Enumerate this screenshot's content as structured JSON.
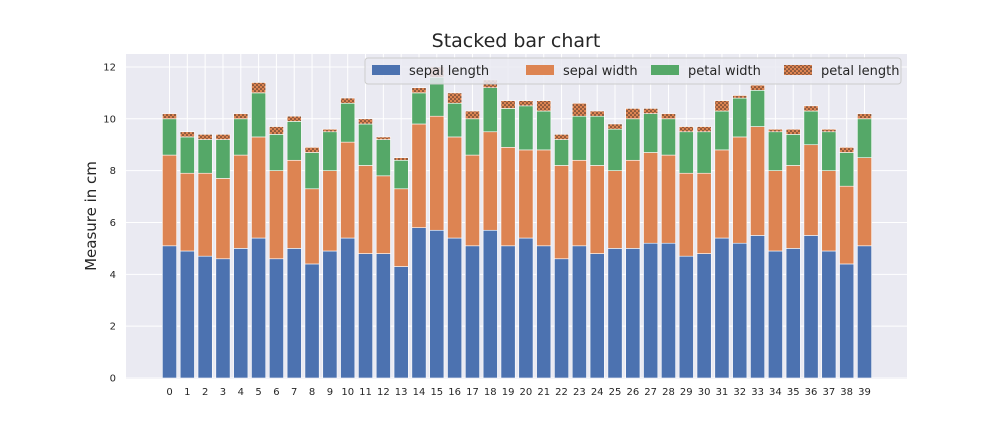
{
  "chart_data": {
    "type": "bar",
    "stacked": true,
    "title": "Stacked bar chart",
    "xlabel": "",
    "ylabel": "Measure in cm",
    "ylim": [
      0,
      12.5
    ],
    "yticks": [
      0,
      2,
      4,
      6,
      8,
      10,
      12
    ],
    "grid": true,
    "legend_position": "top-right",
    "categories": [
      "0",
      "1",
      "2",
      "3",
      "4",
      "5",
      "6",
      "7",
      "8",
      "9",
      "10",
      "11",
      "12",
      "13",
      "14",
      "15",
      "16",
      "17",
      "18",
      "19",
      "20",
      "21",
      "22",
      "23",
      "24",
      "25",
      "26",
      "27",
      "28",
      "29",
      "30",
      "31",
      "32",
      "33",
      "34",
      "35",
      "36",
      "37",
      "38",
      "39"
    ],
    "series": [
      {
        "name": "sepal length",
        "color": "#4c72b0",
        "values": [
          5.1,
          4.9,
          4.7,
          4.6,
          5.0,
          5.4,
          4.6,
          5.0,
          4.4,
          4.9,
          5.4,
          4.8,
          4.8,
          4.3,
          5.8,
          5.7,
          5.4,
          5.1,
          5.7,
          5.1,
          5.4,
          5.1,
          4.6,
          5.1,
          4.8,
          5.0,
          5.0,
          5.2,
          5.2,
          4.7,
          4.8,
          5.4,
          5.2,
          5.5,
          4.9,
          5.0,
          5.5,
          4.9,
          4.4,
          5.1
        ]
      },
      {
        "name": "sepal width",
        "color": "#dd8452",
        "values": [
          3.5,
          3.0,
          3.2,
          3.1,
          3.6,
          3.9,
          3.4,
          3.4,
          2.9,
          3.1,
          3.7,
          3.4,
          3.0,
          3.0,
          4.0,
          4.4,
          3.9,
          3.5,
          3.8,
          3.8,
          3.4,
          3.7,
          3.6,
          3.3,
          3.4,
          3.0,
          3.4,
          3.5,
          3.4,
          3.2,
          3.1,
          3.4,
          4.1,
          4.2,
          3.1,
          3.2,
          3.5,
          3.1,
          3.0,
          3.4
        ]
      },
      {
        "name": "petal width",
        "color": "#55a868",
        "values": [
          1.4,
          1.4,
          1.3,
          1.5,
          1.4,
          1.7,
          1.4,
          1.5,
          1.4,
          1.5,
          1.5,
          1.6,
          1.4,
          1.1,
          1.2,
          1.5,
          1.3,
          1.4,
          1.7,
          1.5,
          1.7,
          1.5,
          1.0,
          1.7,
          1.9,
          1.6,
          1.6,
          1.5,
          1.4,
          1.6,
          1.6,
          1.5,
          1.5,
          1.4,
          1.5,
          1.2,
          1.3,
          1.5,
          1.3,
          1.5
        ]
      },
      {
        "name": "petal length",
        "color": "#c44e52",
        "hatch": true,
        "values": [
          0.2,
          0.2,
          0.2,
          0.2,
          0.2,
          0.4,
          0.3,
          0.2,
          0.2,
          0.1,
          0.2,
          0.2,
          0.1,
          0.1,
          0.2,
          0.4,
          0.4,
          0.3,
          0.3,
          0.3,
          0.2,
          0.4,
          0.2,
          0.5,
          0.2,
          0.2,
          0.4,
          0.2,
          0.2,
          0.2,
          0.2,
          0.4,
          0.1,
          0.2,
          0.1,
          0.2,
          0.2,
          0.1,
          0.2,
          0.2
        ]
      }
    ]
  }
}
